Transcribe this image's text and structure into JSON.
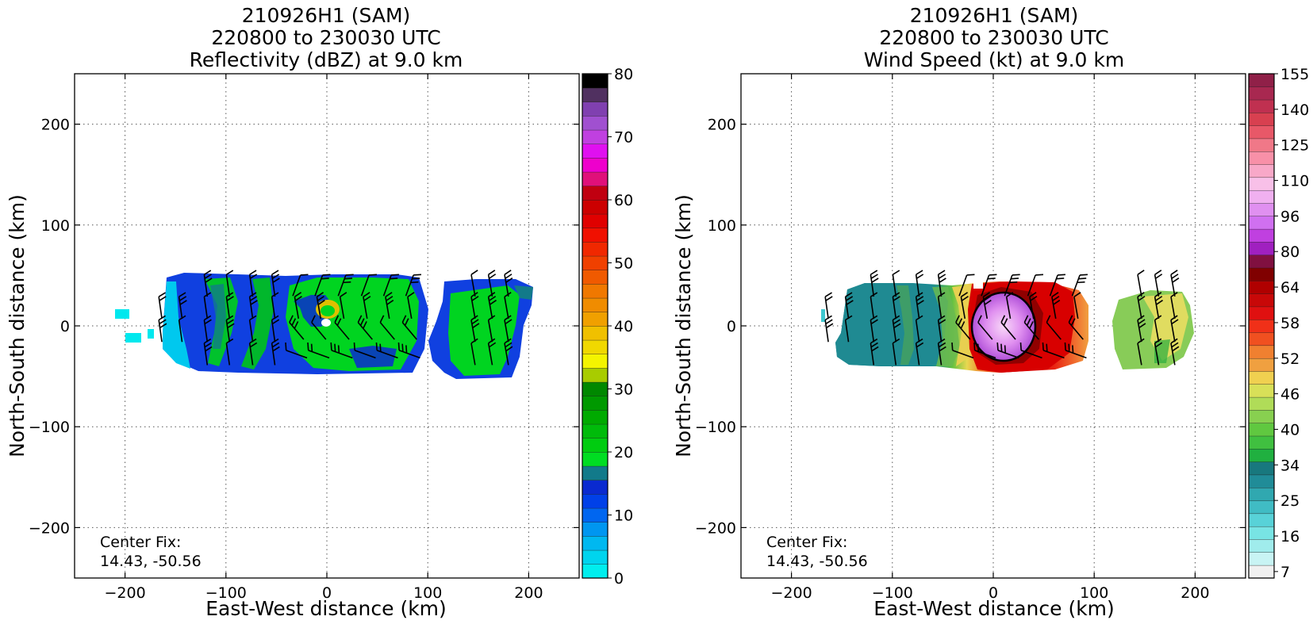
{
  "chart_data": [
    {
      "type": "heatmap",
      "title": [
        "210926H1 (SAM)",
        "220800 to 230030 UTC",
        "Reflectivity (dBZ) at 9.0 km"
      ],
      "xlabel": "East-West distance (km)",
      "ylabel": "North-South distance (km)",
      "xlim": [
        -250,
        250
      ],
      "ylim": [
        -250,
        250
      ],
      "xticks": [
        -200,
        -100,
        0,
        100,
        200
      ],
      "yticks": [
        -200,
        -100,
        0,
        100,
        200
      ],
      "xtick_labels": [
        "−200",
        "−100",
        "0",
        "100",
        "200"
      ],
      "ytick_labels": [
        "−200",
        "−100",
        "0",
        "100",
        "200"
      ],
      "grid": true,
      "annotation": [
        "Center Fix:",
        "14.43, -50.56"
      ],
      "colorbar": {
        "range": [
          0,
          80
        ],
        "ticks": [
          0,
          10,
          20,
          30,
          40,
          50,
          60,
          70,
          80
        ],
        "colors": [
          "#00eeee",
          "#00d4ee",
          "#00b8f0",
          "#0096f0",
          "#0066f0",
          "#0040e8",
          "#0a2ad0",
          "#127a8a",
          "#00dd22",
          "#00cc10",
          "#00bb0a",
          "#00aa00",
          "#009900",
          "#008800",
          "#a8cc00",
          "#f4f400",
          "#f0d800",
          "#f0c000",
          "#f0a000",
          "#f08c00",
          "#f07800",
          "#f05a00",
          "#f04000",
          "#f02800",
          "#f01000",
          "#e00000",
          "#cc0000",
          "#c00010",
          "#e0107a",
          "#ee00cc",
          "#e010f0",
          "#c040e0",
          "#a050d0",
          "#8040b0",
          "#503060",
          "#000000"
        ]
      },
      "echo_regions": [
        {
          "name": "main-band",
          "x": [
            -160,
            95
          ],
          "y": [
            -48,
            48
          ],
          "dominant_dbz": [
            12,
            25
          ]
        },
        {
          "name": "east-band",
          "x": [
            105,
            205
          ],
          "y": [
            -52,
            42
          ],
          "dominant_dbz": [
            15,
            25
          ]
        },
        {
          "name": "eyewall",
          "x": [
            -10,
            20
          ],
          "y": [
            5,
            20
          ],
          "peak_dbz": 38
        }
      ]
    },
    {
      "type": "heatmap",
      "title": [
        "210926H1 (SAM)",
        "220800 to 230030 UTC",
        "Wind Speed (kt) at 9.0 km"
      ],
      "xlabel": "East-West distance (km)",
      "ylabel": "North-South distance (km)",
      "xlim": [
        -250,
        250
      ],
      "ylim": [
        -250,
        250
      ],
      "xticks": [
        -200,
        -100,
        0,
        100,
        200
      ],
      "yticks": [
        -200,
        -100,
        0,
        100,
        200
      ],
      "xtick_labels": [
        "−200",
        "−100",
        "0",
        "100",
        "200"
      ],
      "ytick_labels": [
        "−200",
        "−100",
        "0",
        "100",
        "200"
      ],
      "grid": true,
      "annotation": [
        "Center Fix:",
        "14.43, -50.56"
      ],
      "colorbar": {
        "ticks": [
          7,
          16,
          25,
          34,
          40,
          46,
          52,
          58,
          64,
          80,
          96,
          110,
          125,
          140,
          155
        ],
        "colors": [
          "#f0f0f0",
          "#c8f4f4",
          "#a0ecec",
          "#78e4e4",
          "#58d2d8",
          "#40bcc4",
          "#30a8b0",
          "#208c98",
          "#18787e",
          "#20b040",
          "#40c040",
          "#60c840",
          "#88d050",
          "#b0dc58",
          "#d8e058",
          "#f0d050",
          "#f0a040",
          "#f08030",
          "#f05020",
          "#f03018",
          "#e01010",
          "#c80808",
          "#b00000",
          "#800000",
          "#801040",
          "#a020c0",
          "#c040e0",
          "#d070f0",
          "#e090f0",
          "#f0b0f0",
          "#f8c0e8",
          "#f8a8c8",
          "#f890a8",
          "#f07888",
          "#e85868",
          "#d84050",
          "#c03050",
          "#a82850",
          "#902048"
        ]
      },
      "speed_regions": [
        {
          "name": "western-band",
          "x": [
            -170,
            -45
          ],
          "y": [
            -40,
            40
          ],
          "dominant_kt": [
            22,
            30
          ]
        },
        {
          "name": "inner-core",
          "x": [
            -45,
            95
          ],
          "y": [
            -50,
            45
          ],
          "dominant_kt": [
            46,
            64
          ]
        },
        {
          "name": "eye",
          "x": [
            -25,
            35
          ],
          "y": [
            -25,
            25
          ],
          "peak_kt": 96
        },
        {
          "name": "eastern-band",
          "x": [
            115,
            185
          ],
          "y": [
            -35,
            35
          ],
          "dominant_kt": [
            34,
            46
          ]
        }
      ]
    }
  ]
}
